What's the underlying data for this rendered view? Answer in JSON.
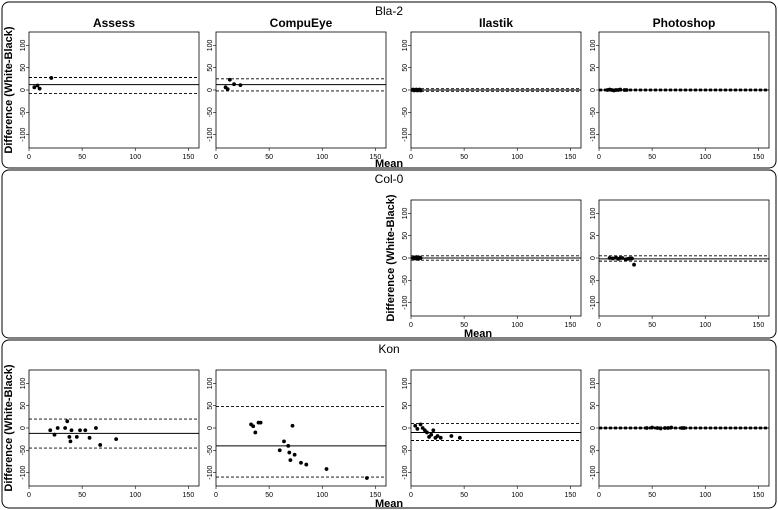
{
  "chart_data": {
    "type": "scatter",
    "x_axis_label": "Mean",
    "y_axis_label": "Difference (White-Black)",
    "xlim": [
      0,
      160
    ],
    "ylim": [
      -130,
      130
    ],
    "x_ticks": [
      "0",
      "50",
      "100",
      "150"
    ],
    "y_ticks": [
      "100",
      "50",
      "0",
      "-50",
      "-100"
    ],
    "columns": [
      "Assess",
      "CompuEye",
      "Ilastik",
      "Photoshop"
    ],
    "groups": [
      {
        "name": "Bla-2",
        "panels": [
          {
            "method": "Assess",
            "bias": 12,
            "loa": [
              -8,
              28
            ],
            "points": [
              [
                5,
                6
              ],
              [
                8,
                10
              ],
              [
                10,
                3
              ],
              [
                21,
                27
              ]
            ]
          },
          {
            "method": "CompuEye",
            "bias": 12,
            "loa": [
              -2,
              25
            ],
            "points": [
              [
                9,
                6
              ],
              [
                11,
                2
              ],
              [
                13,
                23
              ],
              [
                17,
                13
              ],
              [
                23,
                11
              ]
            ]
          },
          {
            "method": "Ilastik",
            "bias": 0,
            "loa": [
              -3,
              3
            ],
            "points": [
              [
                2,
                1
              ],
              [
                3,
                -1
              ],
              [
                4,
                0
              ],
              [
                5,
                1
              ],
              [
                6,
                -1
              ],
              [
                7,
                0
              ],
              [
                8,
                1
              ],
              [
                9,
                -1
              ]
            ]
          },
          {
            "method": "Photoshop",
            "bias": 0,
            "loa": [
              -2,
              2
            ],
            "points": [
              [
                8,
                0
              ],
              [
                10,
                1
              ],
              [
                12,
                0
              ],
              [
                14,
                -1
              ],
              [
                16,
                0
              ],
              [
                18,
                0
              ],
              [
                20,
                1
              ],
              [
                24,
                0
              ],
              [
                26,
                0
              ]
            ]
          }
        ]
      },
      {
        "name": "Col-0",
        "panels": [
          null,
          null,
          {
            "method": "Ilastik",
            "bias": 0,
            "loa": [
              -5,
              5
            ],
            "points": [
              [
                2,
                0
              ],
              [
                3,
                1
              ],
              [
                4,
                -1
              ],
              [
                5,
                2
              ],
              [
                6,
                0
              ],
              [
                7,
                -2
              ],
              [
                8,
                1
              ],
              [
                9,
                0
              ]
            ]
          },
          {
            "method": "Photoshop",
            "bias": -2,
            "loa": [
              -7,
              5
            ],
            "points": [
              [
                10,
                0
              ],
              [
                13,
                -1
              ],
              [
                16,
                1
              ],
              [
                18,
                -2
              ],
              [
                20,
                0
              ],
              [
                22,
                0
              ],
              [
                25,
                -3
              ],
              [
                27,
                -2
              ],
              [
                29,
                -1
              ],
              [
                31,
                -1
              ],
              [
                33,
                -15
              ]
            ]
          }
        ]
      },
      {
        "name": "Kon",
        "panels": [
          {
            "method": "Assess",
            "bias": -12,
            "loa": [
              -45,
              20
            ],
            "points": [
              [
                20,
                -5
              ],
              [
                24,
                -15
              ],
              [
                27,
                0
              ],
              [
                34,
                0
              ],
              [
                36,
                15
              ],
              [
                38,
                -20
              ],
              [
                39,
                -30
              ],
              [
                40,
                -5
              ],
              [
                45,
                -20
              ],
              [
                48,
                -5
              ],
              [
                53,
                -5
              ],
              [
                57,
                -22
              ],
              [
                63,
                0
              ],
              [
                67,
                -38
              ],
              [
                82,
                -25
              ]
            ]
          },
          {
            "method": "CompuEye",
            "bias": -40,
            "loa": [
              -110,
              48
            ],
            "points": [
              [
                33,
                8
              ],
              [
                35,
                4
              ],
              [
                37,
                -10
              ],
              [
                40,
                12
              ],
              [
                42,
                12
              ],
              [
                60,
                -50
              ],
              [
                64,
                -30
              ],
              [
                68,
                -40
              ],
              [
                69,
                -55
              ],
              [
                70,
                -72
              ],
              [
                72,
                5
              ],
              [
                74,
                -60
              ],
              [
                80,
                -78
              ],
              [
                85,
                -82
              ],
              [
                104,
                -92
              ],
              [
                142,
                -112
              ]
            ]
          },
          {
            "method": "Ilastik",
            "bias": -10,
            "loa": [
              -28,
              10
            ],
            "points": [
              [
                4,
                5
              ],
              [
                6,
                -2
              ],
              [
                9,
                8
              ],
              [
                11,
                0
              ],
              [
                13,
                -5
              ],
              [
                15,
                -10
              ],
              [
                17,
                -20
              ],
              [
                19,
                -15
              ],
              [
                21,
                -5
              ],
              [
                23,
                -22
              ],
              [
                25,
                -18
              ],
              [
                28,
                -22
              ],
              [
                38,
                -18
              ],
              [
                46,
                -22
              ]
            ]
          },
          {
            "method": "Photoshop",
            "bias": 0,
            "loa": [
              -2,
              2
            ],
            "points": [
              [
                45,
                0
              ],
              [
                50,
                1
              ],
              [
                55,
                0
              ],
              [
                58,
                -1
              ],
              [
                62,
                0
              ],
              [
                65,
                0
              ],
              [
                68,
                1
              ],
              [
                78,
                0
              ],
              [
                80,
                0
              ]
            ]
          }
        ]
      }
    ]
  }
}
